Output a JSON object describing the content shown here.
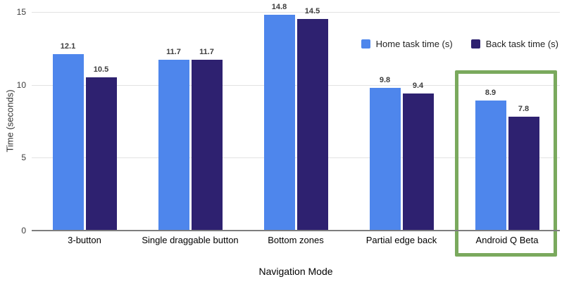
{
  "chart_data": {
    "type": "bar",
    "title": "",
    "xlabel": "Navigation Mode",
    "ylabel": "Time (seconds)",
    "ylim": [
      0,
      15
    ],
    "yticks": [
      0,
      5,
      10,
      15
    ],
    "grid": true,
    "legend_position": "top-right",
    "categories": [
      "3-button",
      "Single draggable button",
      "Bottom zones",
      "Partial edge back",
      "Android Q Beta"
    ],
    "series": [
      {
        "name": "Home task time (s)",
        "color": "#4e86ec",
        "values": [
          12.1,
          11.7,
          14.8,
          9.8,
          8.9
        ]
      },
      {
        "name": "Back task time (s)",
        "color": "#2e2170",
        "values": [
          10.5,
          11.7,
          14.5,
          9.4,
          7.8
        ]
      }
    ],
    "highlighted_category": "Android Q Beta",
    "highlight_color": "#7aa95d"
  },
  "colors": {
    "gridline": "#e2e2e2",
    "baseline": "#7e7e7e",
    "value_label": "#3d3d3d",
    "tick_label": "#3c3c3c"
  }
}
